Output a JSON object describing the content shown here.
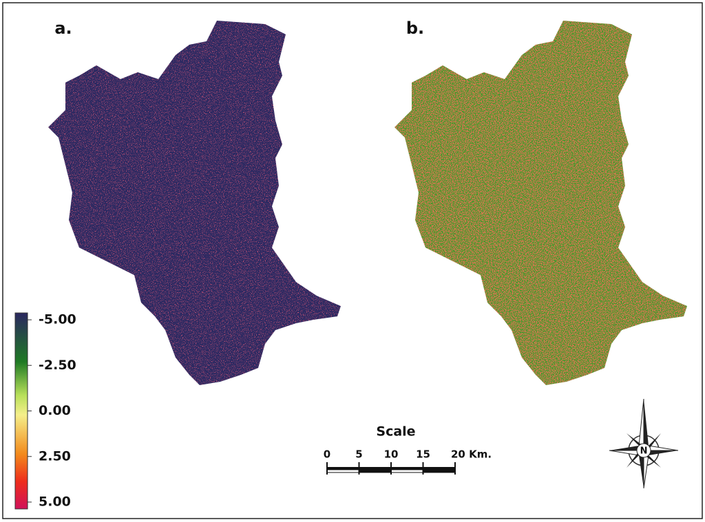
{
  "panels": [
    {
      "label": "a."
    },
    {
      "label": "b."
    }
  ],
  "legend": {
    "ticks": [
      {
        "value": -5,
        "label": "-5.00"
      },
      {
        "value": -2.5,
        "label": "-2.50"
      },
      {
        "value": 0,
        "label": "0.00"
      },
      {
        "value": 2.5,
        "label": "2.50"
      },
      {
        "value": 5,
        "label": "5.00"
      }
    ]
  },
  "scale_bar": {
    "title": "Scale",
    "ticks": [
      0,
      5,
      10,
      15,
      {
        "value": 20,
        "label": "20 Km."
      }
    ]
  },
  "north_arrow": {
    "label": "N"
  }
}
